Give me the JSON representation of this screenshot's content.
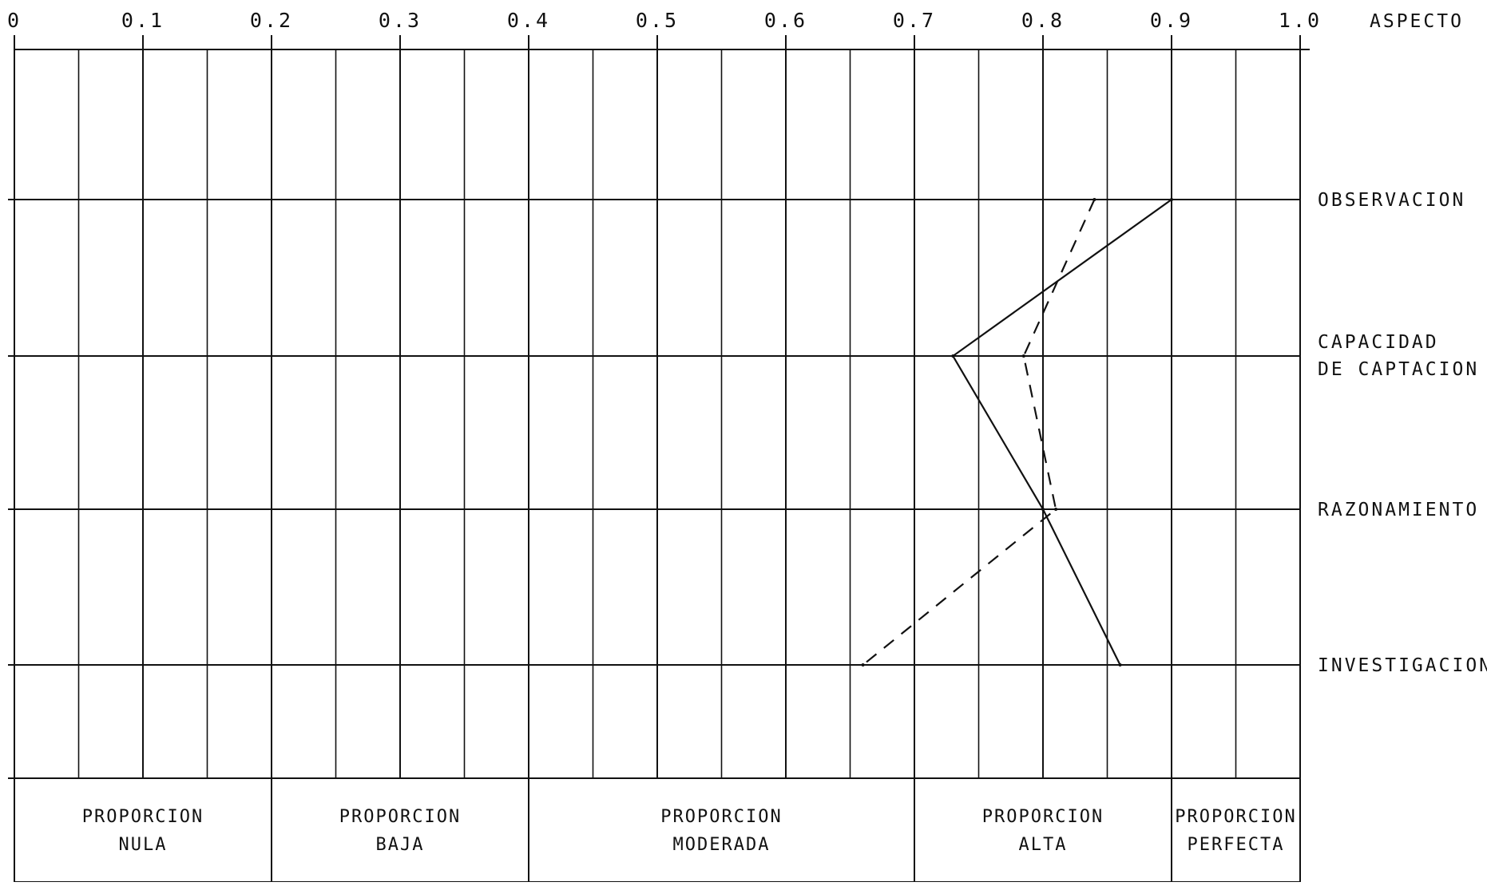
{
  "chart_data": {
    "type": "line",
    "title": "",
    "xlabel": "",
    "ylabel": "",
    "xlim": [
      0,
      1.0
    ],
    "x_ticks": [
      "0",
      "0.1",
      "0.2",
      "0.3",
      "0.4",
      "0.5",
      "0.6",
      "0.7",
      "0.8",
      "0.9",
      "1.0"
    ],
    "aspect_header": "ASPECTO",
    "categories": [
      {
        "label": "OBSERVACION"
      },
      {
        "label": "CAPACIDAD",
        "label2": "DE CAPTACION"
      },
      {
        "label": "RAZONAMIENTO"
      },
      {
        "label": "INVESTIGACION"
      }
    ],
    "series": [
      {
        "style": "solid",
        "values": [
          0.9,
          0.73,
          0.8,
          0.86
        ]
      },
      {
        "style": "dashed",
        "values": [
          0.84,
          0.785,
          0.81,
          0.66
        ]
      }
    ],
    "bands": [
      {
        "line1": "PROPORCION",
        "line2": "NULA",
        "from": 0.0,
        "to": 0.2
      },
      {
        "line1": "PROPORCION",
        "line2": "BAJA",
        "from": 0.2,
        "to": 0.4
      },
      {
        "line1": "PROPORCION",
        "line2": "MODERADA",
        "from": 0.4,
        "to": 0.7
      },
      {
        "line1": "PROPORCION",
        "line2": "ALTA",
        "from": 0.7,
        "to": 0.9
      },
      {
        "line1": "PROPORCION",
        "line2": "PERFECTA",
        "from": 0.9,
        "to": 1.0
      }
    ],
    "grid": true,
    "legend": "none"
  }
}
